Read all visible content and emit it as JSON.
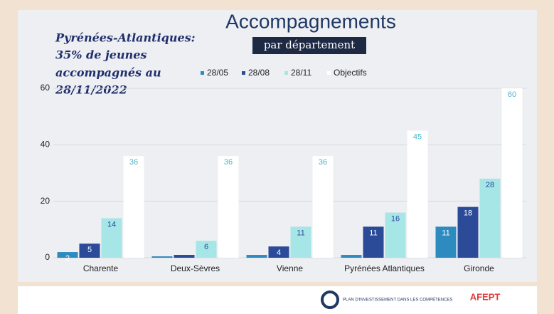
{
  "chart_data": {
    "type": "bar",
    "title": "Accompagnements",
    "subtitle": "par département",
    "annotation": [
      "Pyrénées-Atlantiques:",
      "35% de jeunes",
      "accompagnés au",
      "28/11/2022"
    ],
    "categories": [
      "Charente",
      "Deux-Sèvres",
      "Vienne",
      "Pyrénées Atlantiques",
      "Gironde"
    ],
    "series": [
      {
        "name": "28/05",
        "color": "#2e8bc0",
        "values": [
          2,
          0.5,
          1,
          1,
          11
        ],
        "value_labels": [
          "2",
          null,
          null,
          null,
          "11"
        ]
      },
      {
        "name": "28/08",
        "color": "#2b4a98",
        "values": [
          5,
          1,
          4,
          11,
          18
        ],
        "value_labels": [
          "5",
          null,
          "4",
          "11",
          "18"
        ]
      },
      {
        "name": "28/11",
        "color": "#a6e6e6",
        "values": [
          14,
          6,
          11,
          16,
          28
        ],
        "value_labels": [
          "14",
          "6",
          "11",
          "16",
          "28"
        ]
      },
      {
        "name": "Objectifs",
        "color": "#ffffff",
        "values": [
          36,
          36,
          36,
          45,
          60
        ],
        "value_labels": [
          "36",
          "36",
          "36",
          "45",
          "60"
        ]
      }
    ],
    "ylim": [
      0,
      60
    ],
    "yticks": [
      0,
      20,
      40,
      60
    ],
    "grid": true,
    "legend": "top"
  },
  "footer": {
    "logo_text": "PLAN D'INVESTISSEMENT DANS LES COMPÉTENCES",
    "partner": "AFEPT"
  }
}
